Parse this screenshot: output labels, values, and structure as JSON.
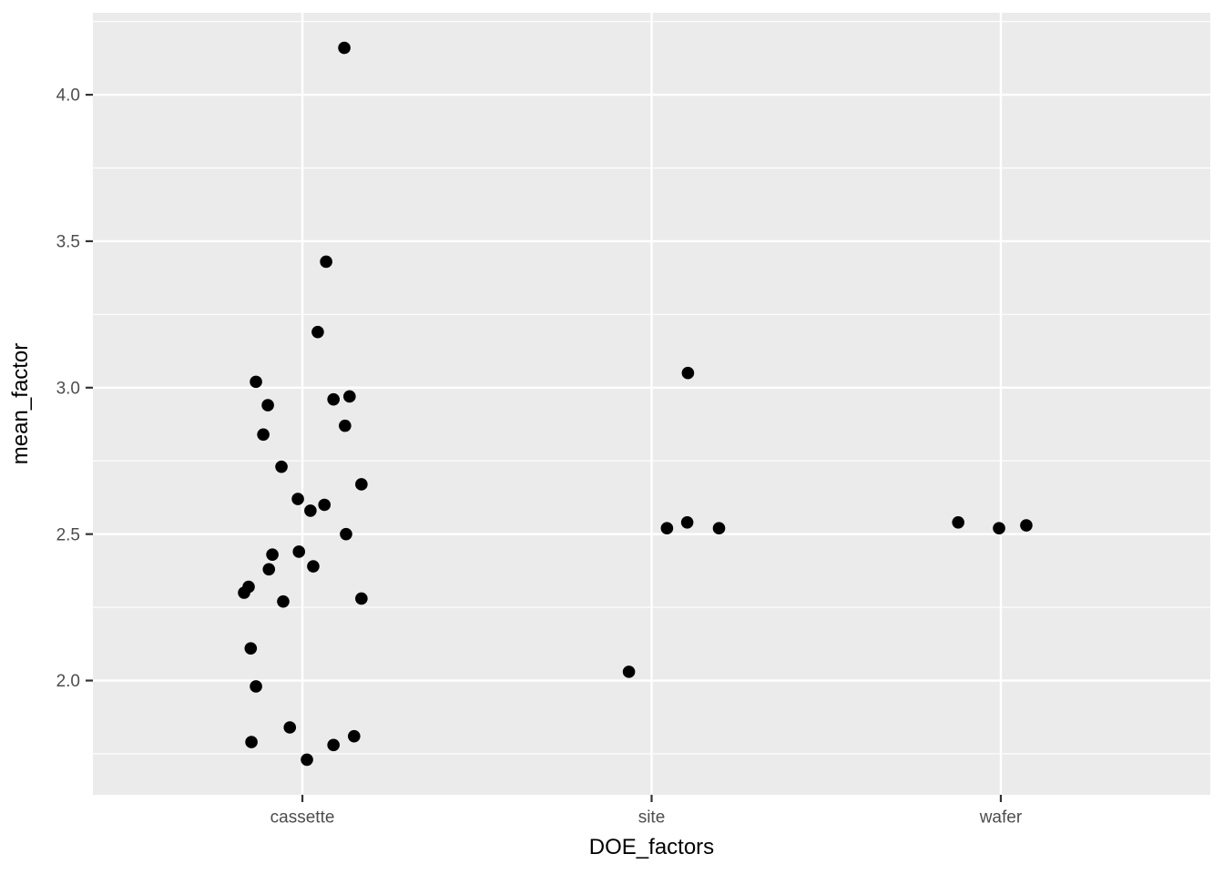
{
  "figure": {
    "background": "#FFFFFF",
    "panel_background": "#EBEBEB",
    "gridline_color": "#FFFFFF",
    "tick_mark_color": "#333333",
    "axis_text_color": "#4D4D4D",
    "axis_title_color": "#000000",
    "point_color": "#000000"
  },
  "chart_data": {
    "type": "scatter",
    "title": "",
    "xlabel": "DOE_factors",
    "ylabel": "mean_factor",
    "categories": [
      "cassette",
      "site",
      "wafer"
    ],
    "x_category_positions": [
      1,
      2,
      3
    ],
    "xlim": [
      0.4,
      3.6
    ],
    "ylim": [
      1.61,
      4.28
    ],
    "y_major_ticks": [
      2.0,
      2.5,
      3.0,
      3.5,
      4.0
    ],
    "y_major_tick_labels": [
      "2.0",
      "2.5",
      "3.0",
      "3.5",
      "4.0"
    ],
    "y_minor_ticks": [
      1.75,
      2.25,
      2.75,
      3.25,
      3.75,
      4.25
    ],
    "grid": true,
    "legend": "none",
    "point_style": {
      "shape": "circle",
      "radius_px": 6.8
    },
    "series": [
      {
        "name": "cassette",
        "points": [
          {
            "x": 1.12,
            "y": 4.16
          },
          {
            "x": 1.068,
            "y": 3.43
          },
          {
            "x": 1.044,
            "y": 3.19
          },
          {
            "x": 0.867,
            "y": 3.02
          },
          {
            "x": 0.901,
            "y": 2.94
          },
          {
            "x": 1.089,
            "y": 2.96
          },
          {
            "x": 1.135,
            "y": 2.97
          },
          {
            "x": 1.122,
            "y": 2.87
          },
          {
            "x": 0.888,
            "y": 2.84
          },
          {
            "x": 0.94,
            "y": 2.73
          },
          {
            "x": 1.169,
            "y": 2.67
          },
          {
            "x": 0.987,
            "y": 2.62
          },
          {
            "x": 1.063,
            "y": 2.6
          },
          {
            "x": 1.023,
            "y": 2.58
          },
          {
            "x": 1.125,
            "y": 2.5
          },
          {
            "x": 0.914,
            "y": 2.43
          },
          {
            "x": 0.99,
            "y": 2.44
          },
          {
            "x": 0.904,
            "y": 2.38
          },
          {
            "x": 1.031,
            "y": 2.39
          },
          {
            "x": 0.846,
            "y": 2.32
          },
          {
            "x": 0.833,
            "y": 2.3
          },
          {
            "x": 0.945,
            "y": 2.27
          },
          {
            "x": 1.169,
            "y": 2.28
          },
          {
            "x": 0.852,
            "y": 2.11
          },
          {
            "x": 0.867,
            "y": 1.98
          },
          {
            "x": 0.964,
            "y": 1.84
          },
          {
            "x": 0.854,
            "y": 1.79
          },
          {
            "x": 1.089,
            "y": 1.78
          },
          {
            "x": 1.148,
            "y": 1.81
          },
          {
            "x": 1.013,
            "y": 1.73
          }
        ]
      },
      {
        "name": "site",
        "points": [
          {
            "x": 2.104,
            "y": 3.05
          },
          {
            "x": 2.102,
            "y": 2.54
          },
          {
            "x": 2.044,
            "y": 2.52
          },
          {
            "x": 2.193,
            "y": 2.52
          },
          {
            "x": 1.935,
            "y": 2.03
          }
        ]
      },
      {
        "name": "wafer",
        "points": [
          {
            "x": 2.878,
            "y": 2.54
          },
          {
            "x": 2.995,
            "y": 2.52
          },
          {
            "x": 3.073,
            "y": 2.53
          }
        ]
      }
    ]
  }
}
